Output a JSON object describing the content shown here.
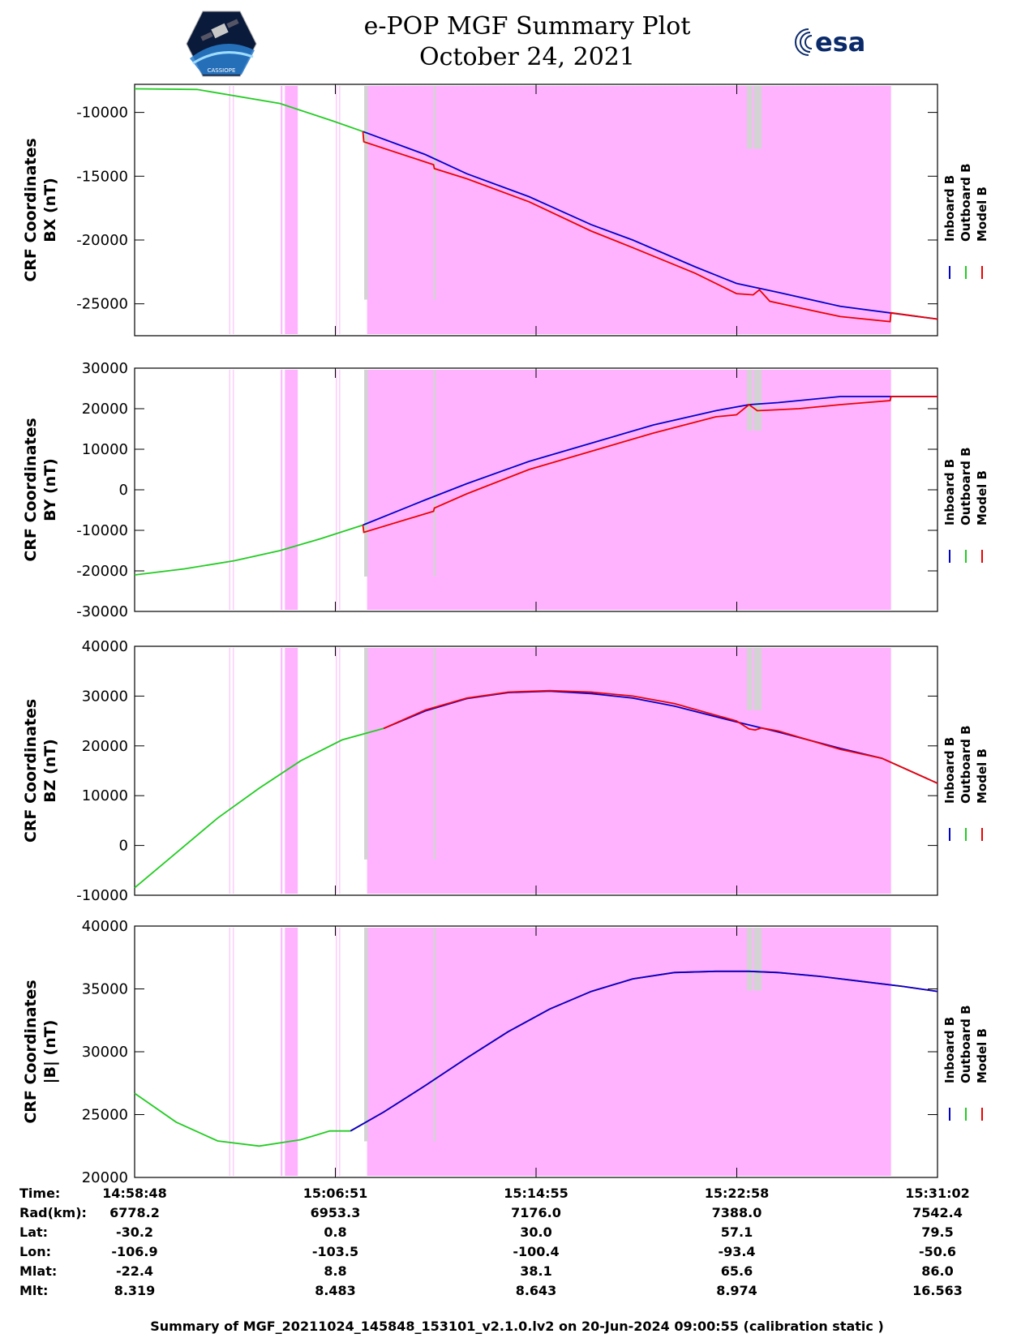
{
  "header": {
    "title_line1": "e-POP MGF Summary Plot",
    "title_line2": "October 24, 2021",
    "logo_left_text": "CASSIOPE",
    "logo_right_text": "esa"
  },
  "colors": {
    "inboard": "#0000cc",
    "outboard": "#22cc22",
    "model": "#ee0000",
    "calibration_shade": "#ffb3ff",
    "gap_shade": "#d3d3d3"
  },
  "legend": [
    "Inboard B",
    "Outboard B",
    "Model B"
  ],
  "time_axis": {
    "ticks": [
      "14:58:48",
      "15:06:51",
      "15:14:55",
      "15:22:58",
      "15:31:02"
    ],
    "start_sec": 0,
    "end_sec": 1934
  },
  "chart_data": [
    {
      "type": "line",
      "ylabel_line1": "CRF Coordinates",
      "ylabel_line2": "BX (nT)",
      "ylim": [
        -27500,
        -7800
      ],
      "yticks": [
        -10000,
        -15000,
        -20000,
        -25000
      ],
      "series": [
        {
          "name": "Outboard B",
          "x": [
            0,
            150,
            350,
            480,
            550
          ],
          "values": [
            -8150,
            -8200,
            -9300,
            -10700,
            -11500
          ]
        },
        {
          "name": "Inboard B",
          "x": [
            550,
            700,
            800,
            950,
            1100,
            1200,
            1350,
            1450,
            1550,
            1700,
            1934
          ],
          "values": [
            -11500,
            -13300,
            -14800,
            -16600,
            -18800,
            -20000,
            -22100,
            -23400,
            -24100,
            -25200,
            -26200
          ]
        },
        {
          "name": "Model B",
          "x": [
            550,
            552,
            720,
            722,
            800,
            950,
            1100,
            1200,
            1350,
            1450,
            1490,
            1505,
            1530,
            1600,
            1700,
            1820,
            1822,
            1934
          ],
          "values": [
            -11500,
            -12300,
            -14100,
            -14400,
            -15200,
            -17000,
            -19300,
            -20600,
            -22600,
            -24200,
            -24300,
            -23900,
            -24800,
            -25300,
            -26000,
            -26400,
            -25700,
            -26200
          ]
        }
      ]
    },
    {
      "type": "line",
      "ylabel_line1": "CRF Coordinates",
      "ylabel_line2": "BY (nT)",
      "ylim": [
        -30000,
        30000
      ],
      "yticks": [
        30000,
        20000,
        10000,
        0,
        -10000,
        -20000,
        -30000
      ],
      "series": [
        {
          "name": "Outboard B",
          "x": [
            0,
            120,
            240,
            350,
            450,
            550
          ],
          "values": [
            -21000,
            -19500,
            -17500,
            -15000,
            -12000,
            -8700
          ]
        },
        {
          "name": "Inboard B",
          "x": [
            550,
            700,
            800,
            950,
            1100,
            1250,
            1400,
            1480,
            1550,
            1700,
            1934
          ],
          "values": [
            -8700,
            -2500,
            1500,
            7000,
            11500,
            16000,
            19500,
            21000,
            21500,
            23000,
            23000
          ]
        },
        {
          "name": "Model B",
          "x": [
            550,
            552,
            720,
            722,
            800,
            950,
            1100,
            1250,
            1400,
            1450,
            1480,
            1500,
            1600,
            1700,
            1820,
            1822,
            1934
          ],
          "values": [
            -8700,
            -10500,
            -5300,
            -4500,
            -1000,
            5000,
            9500,
            14000,
            18000,
            18500,
            21000,
            19500,
            20000,
            21000,
            22000,
            23000,
            23000
          ]
        }
      ]
    },
    {
      "type": "line",
      "ylabel_line1": "CRF Coordinates",
      "ylabel_line2": "BZ (nT)",
      "ylim": [
        -10000,
        40000
      ],
      "yticks": [
        40000,
        30000,
        20000,
        10000,
        0,
        -10000
      ],
      "series": [
        {
          "name": "Outboard B",
          "x": [
            0,
            100,
            200,
            300,
            400,
            500,
            600
          ],
          "values": [
            -8500,
            -1500,
            5500,
            11500,
            17000,
            21200,
            23500
          ]
        },
        {
          "name": "Inboard B",
          "x": [
            600,
            700,
            800,
            900,
            1000,
            1100,
            1200,
            1300,
            1450,
            1550,
            1700,
            1800,
            1934
          ],
          "values": [
            23500,
            27000,
            29500,
            30700,
            31000,
            30500,
            29600,
            28000,
            24800,
            22800,
            19500,
            17500,
            12500
          ]
        },
        {
          "name": "Model B",
          "x": [
            600,
            700,
            800,
            900,
            1000,
            1100,
            1200,
            1300,
            1450,
            1480,
            1495,
            1510,
            1550,
            1700,
            1800,
            1934
          ],
          "values": [
            23500,
            27200,
            29600,
            30800,
            31100,
            30800,
            30000,
            28500,
            25000,
            23400,
            23200,
            23600,
            23000,
            19300,
            17500,
            12500
          ]
        }
      ]
    },
    {
      "type": "line",
      "ylabel_line1": "CRF Coordinates",
      "ylabel_line2": "|B| (nT)",
      "ylim": [
        20000,
        40000
      ],
      "yticks": [
        40000,
        35000,
        30000,
        25000,
        20000
      ],
      "series": [
        {
          "name": "Outboard B",
          "x": [
            0,
            100,
            200,
            300,
            400,
            470,
            520
          ],
          "values": [
            26700,
            24400,
            22900,
            22500,
            23000,
            23700,
            23700
          ]
        },
        {
          "name": "Model B",
          "x": [
            520,
            600,
            700,
            800,
            900,
            1000,
            1100,
            1200,
            1300,
            1400,
            1480,
            1550,
            1650,
            1750,
            1850,
            1934
          ],
          "values": [
            23700,
            25200,
            27300,
            29500,
            31600,
            33400,
            34800,
            35800,
            36300,
            36400,
            36400,
            36300,
            36000,
            35600,
            35200,
            34800
          ]
        },
        {
          "name": "Inboard B",
          "x": [
            520,
            600,
            700,
            800,
            900,
            1000,
            1100,
            1200,
            1300,
            1400,
            1480,
            1550,
            1650,
            1750,
            1850,
            1934
          ],
          "values": [
            23700,
            25200,
            27300,
            29500,
            31600,
            33400,
            34800,
            35800,
            36300,
            36400,
            36400,
            36300,
            36000,
            35600,
            35200,
            34800
          ]
        }
      ]
    }
  ],
  "shading": {
    "calibration": [
      [
        228,
        230
      ],
      [
        237,
        239
      ],
      [
        352,
        356
      ],
      [
        362,
        393
      ],
      [
        485,
        487
      ],
      [
        493,
        495
      ],
      [
        560,
        1822
      ]
    ],
    "gaps": [
      [
        553,
        562
      ],
      [
        720,
        725
      ],
      [
        1475,
        1488
      ],
      [
        1492,
        1510
      ]
    ]
  },
  "info_table": {
    "labels": [
      "Time:",
      "Rad(km):",
      "Lat:",
      "Lon:",
      "Mlat:",
      "Mlt:"
    ],
    "columns": [
      [
        "14:58:48",
        "6778.2",
        "-30.2",
        "-106.9",
        "-22.4",
        "8.319"
      ],
      [
        "15:06:51",
        "6953.3",
        "0.8",
        "-103.5",
        "8.8",
        "8.483"
      ],
      [
        "15:14:55",
        "7176.0",
        "30.0",
        "-100.4",
        "38.1",
        "8.643"
      ],
      [
        "15:22:58",
        "7388.0",
        "57.1",
        "-93.4",
        "65.6",
        "8.974"
      ],
      [
        "15:31:02",
        "7542.4",
        "79.5",
        "-50.6",
        "86.0",
        "16.563"
      ]
    ]
  },
  "footer": "Summary of MGF_20211024_145848_153101_v2.1.0.lv2 on 20-Jun-2024 09:00:55 (calibration static )"
}
